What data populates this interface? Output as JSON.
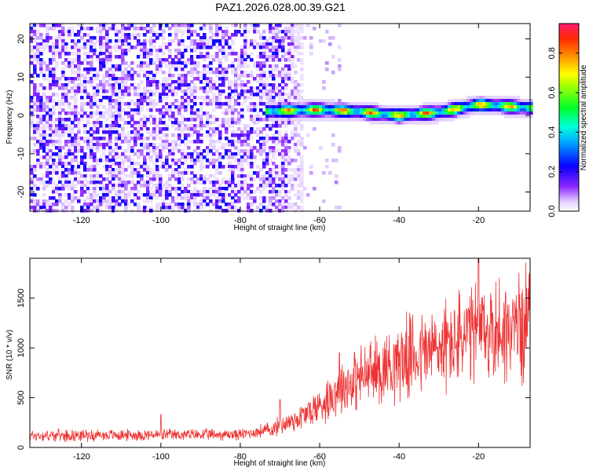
{
  "chart_data": [
    {
      "type": "heatmap",
      "title": "PAZ1.2026.028.00.39.G21",
      "xlabel": "Height of straight line (km)",
      "ylabel": "Frequency (Hz)",
      "xlim": [
        -133,
        -7
      ],
      "ylim": [
        -25,
        24
      ],
      "x_ticks": [
        -120,
        -100,
        -80,
        -60,
        -40,
        -20
      ],
      "y_ticks": [
        -20,
        -10,
        0,
        10,
        20
      ],
      "colorbar": {
        "label": "Normalized spectral amplitude",
        "range": [
          0,
          0.95
        ],
        "ticks": [
          0.0,
          0.2,
          0.4,
          0.6,
          0.8
        ]
      },
      "signal_track": {
        "start_height": -74,
        "points": [
          [
            -74,
            1
          ],
          [
            -60,
            1.5
          ],
          [
            -50,
            1
          ],
          [
            -40,
            0
          ],
          [
            -30,
            0.8
          ],
          [
            -20,
            2.8
          ],
          [
            -7,
            2
          ]
        ]
      },
      "noise_region_end_height": -64
    },
    {
      "type": "line",
      "xlabel": "Height of straight line (km)",
      "ylabel": "SNR (10 * v/v)",
      "xlim": [
        -133,
        -7
      ],
      "ylim": [
        0,
        1900
      ],
      "x_ticks": [
        -120,
        -100,
        -80,
        -60,
        -40,
        -20
      ],
      "y_ticks": [
        0,
        500,
        1000,
        1500
      ],
      "color": "#ee3333",
      "trend": [
        [
          -133,
          120
        ],
        [
          -80,
          130
        ],
        [
          -72,
          180
        ],
        [
          -65,
          300
        ],
        [
          -60,
          420
        ],
        [
          -55,
          600
        ],
        [
          -50,
          700
        ],
        [
          -45,
          780
        ],
        [
          -40,
          880
        ],
        [
          -30,
          1000
        ],
        [
          -20,
          1150
        ],
        [
          -10,
          1200
        ],
        [
          -7,
          1300
        ]
      ],
      "peaks": [
        [
          -20,
          1900
        ],
        [
          -7,
          1760
        ],
        [
          -55,
          950
        ],
        [
          -70,
          480
        ],
        [
          -100,
          330
        ]
      ]
    }
  ]
}
